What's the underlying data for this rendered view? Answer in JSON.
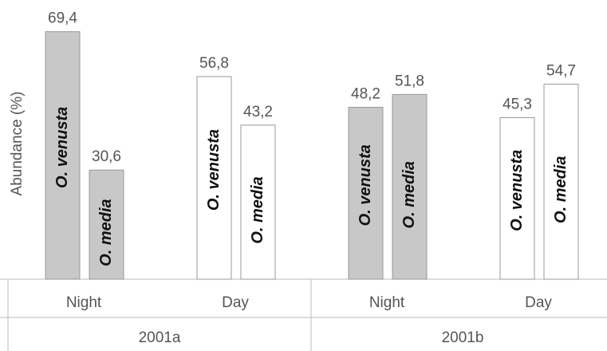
{
  "chart_data": {
    "type": "bar",
    "y_label": "Abundance (%)",
    "categories": [
      "Night",
      "Day",
      "Night",
      "Day"
    ],
    "groups": [
      "2001a",
      "2001b"
    ],
    "category_colors": [
      "#c8c8c8",
      "#ffffff",
      "#c8c8c8",
      "#ffffff"
    ],
    "series": [
      {
        "name": "O. venusta",
        "values": [
          69.4,
          56.8,
          48.2,
          45.3
        ],
        "value_labels": [
          "69,4",
          "56,8",
          "48,2",
          "45,3"
        ]
      },
      {
        "name": "O. media",
        "values": [
          30.6,
          43.2,
          51.8,
          54.7
        ],
        "value_labels": [
          "30,6",
          "43,2",
          "51,8",
          "54,7"
        ]
      }
    ],
    "ylim": [
      0,
      70
    ]
  }
}
